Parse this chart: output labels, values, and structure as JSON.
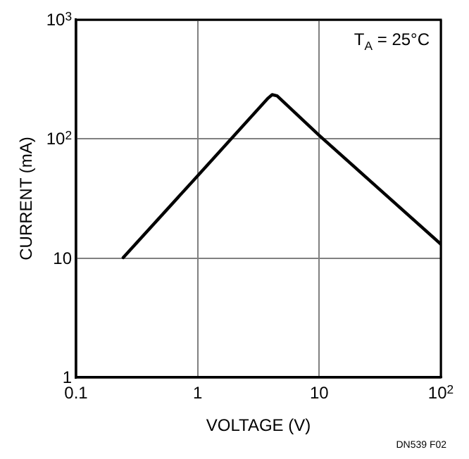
{
  "chart_data": {
    "type": "line",
    "xlabel": "VOLTAGE (V)",
    "ylabel": "CURRENT (mA)",
    "x": [
      0.244,
      1,
      3.8,
      4.1,
      4.5,
      10,
      100
    ],
    "series": [
      {
        "color": "#000000",
        "values": [
          10.1,
          49,
          220,
          235,
          230,
          107,
          13.1
        ]
      }
    ],
    "log": "xy",
    "xlim": [
      0.1,
      100
    ],
    "ylim": [
      1,
      1000
    ],
    "xticks": [
      0.1,
      1,
      10,
      {
        "value": 100,
        "label": "10$^{2}$"
      }
    ],
    "yticks": [
      1,
      10,
      {
        "value": 100,
        "label": "10$^{2}$"
      },
      {
        "value": 1000,
        "label": "10$^{3}$"
      }
    ],
    "grid": true,
    "legend": false,
    "marker": "none",
    "line_style": "solid",
    "annotations": [
      "T$_{A}$ = 25°C",
      "DN539 F02"
    ]
  }
}
